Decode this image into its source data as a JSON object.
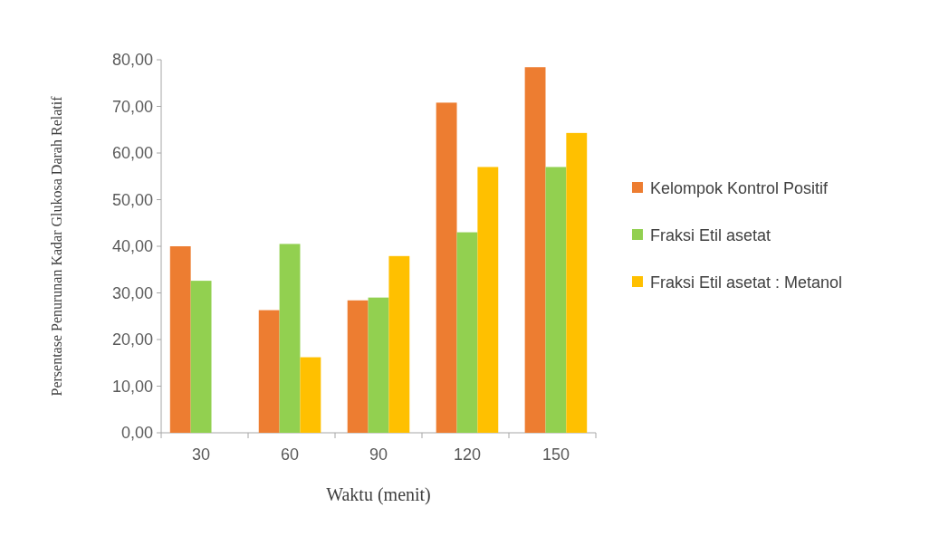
{
  "chart_data": {
    "type": "bar",
    "xlabel": "Waktu (menit)",
    "ylabel": "Persentase Penurunan Kadar Glukosa Darah Relatif",
    "categories": [
      "30",
      "60",
      "90",
      "120",
      "150"
    ],
    "series": [
      {
        "name": "Kelompok Kontrol Positif",
        "color": "#ed7d31",
        "values": [
          40.0,
          26.3,
          28.4,
          70.8,
          78.4
        ]
      },
      {
        "name": "Fraksi Etil asetat",
        "color": "#92d050",
        "values": [
          32.6,
          40.5,
          29.0,
          43.0,
          57.0
        ]
      },
      {
        "name": "Fraksi Etil asetat : Metanol",
        "color": "#ffc000",
        "values": [
          0,
          16.2,
          37.9,
          57.0,
          64.3
        ]
      }
    ],
    "ylim": [
      0,
      80
    ],
    "yticks": [
      {
        "value": 0,
        "label": "0,00"
      },
      {
        "value": 10,
        "label": "10,00"
      },
      {
        "value": 20,
        "label": "20,00"
      },
      {
        "value": 30,
        "label": "30,00"
      },
      {
        "value": 40,
        "label": "40,00"
      },
      {
        "value": 50,
        "label": "50,00"
      },
      {
        "value": 60,
        "label": "60,00"
      },
      {
        "value": 70,
        "label": "70,00"
      },
      {
        "value": 80,
        "label": "80,00"
      }
    ],
    "grid": false,
    "legend": "right"
  }
}
